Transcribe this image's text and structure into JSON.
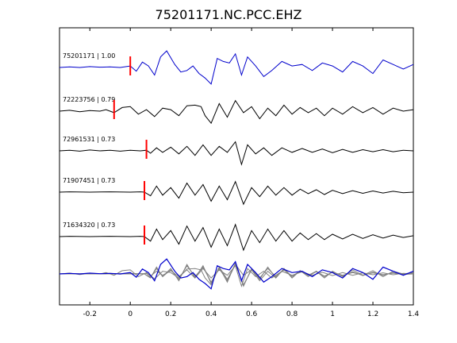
{
  "chart_data": {
    "type": "line",
    "title": "75201171.NC.PCC.EHZ",
    "xlabel": "",
    "ylabel": "",
    "xlim": [
      -0.35,
      1.4
    ],
    "xticks": [
      -0.2,
      0,
      0.2,
      0.4,
      0.6,
      0.8,
      1,
      1.2,
      1.4
    ],
    "xtick_labels": [
      "-0.2",
      "0",
      "0.2",
      "0.4",
      "0.6",
      "0.8",
      "1",
      "1.2",
      "1.4"
    ],
    "grid": false,
    "legend": "none",
    "colors": {
      "reference": "#0000cc",
      "trace": "#000000",
      "pick": "#ff0000",
      "stack_gray": "#808080"
    },
    "series": [
      {
        "label": "75201171 | 1.00",
        "pick_time": 0.0,
        "color": "#0000cc",
        "waveform": [
          [
            -0.35,
            0
          ],
          [
            -0.3,
            0.02
          ],
          [
            -0.25,
            0
          ],
          [
            -0.2,
            0.03
          ],
          [
            -0.15,
            0.01
          ],
          [
            -0.1,
            0.02
          ],
          [
            -0.05,
            0
          ],
          [
            0,
            0.05
          ],
          [
            0.03,
            -0.12
          ],
          [
            0.06,
            0.18
          ],
          [
            0.09,
            0.05
          ],
          [
            0.12,
            -0.25
          ],
          [
            0.15,
            0.35
          ],
          [
            0.18,
            0.55
          ],
          [
            0.22,
            0.1
          ],
          [
            0.25,
            -0.15
          ],
          [
            0.28,
            -0.1
          ],
          [
            0.31,
            0.05
          ],
          [
            0.34,
            -0.2
          ],
          [
            0.37,
            -0.35
          ],
          [
            0.4,
            -0.55
          ],
          [
            0.43,
            0.3
          ],
          [
            0.46,
            0.2
          ],
          [
            0.49,
            0.15
          ],
          [
            0.52,
            0.45
          ],
          [
            0.55,
            -0.25
          ],
          [
            0.58,
            0.35
          ],
          [
            0.62,
            0.05
          ],
          [
            0.66,
            -0.3
          ],
          [
            0.7,
            -0.1
          ],
          [
            0.75,
            0.2
          ],
          [
            0.8,
            0.05
          ],
          [
            0.85,
            0.1
          ],
          [
            0.9,
            -0.1
          ],
          [
            0.95,
            0.15
          ],
          [
            1.0,
            0.05
          ],
          [
            1.05,
            -0.15
          ],
          [
            1.1,
            0.2
          ],
          [
            1.15,
            0.05
          ],
          [
            1.2,
            -0.2
          ],
          [
            1.25,
            0.25
          ],
          [
            1.3,
            0.1
          ],
          [
            1.35,
            -0.05
          ],
          [
            1.4,
            0.1
          ]
        ]
      },
      {
        "label": "72223756 | 0.79",
        "pick_time": -0.08,
        "color": "#000000",
        "waveform": [
          [
            -0.35,
            0
          ],
          [
            -0.3,
            0.03
          ],
          [
            -0.25,
            -0.02
          ],
          [
            -0.2,
            0.02
          ],
          [
            -0.15,
            0
          ],
          [
            -0.12,
            0.05
          ],
          [
            -0.08,
            -0.05
          ],
          [
            -0.04,
            0.12
          ],
          [
            0,
            0.15
          ],
          [
            0.04,
            -0.1
          ],
          [
            0.08,
            0.05
          ],
          [
            0.12,
            -0.18
          ],
          [
            0.16,
            0.1
          ],
          [
            0.2,
            0.05
          ],
          [
            0.24,
            -0.15
          ],
          [
            0.28,
            0.18
          ],
          [
            0.32,
            0.2
          ],
          [
            0.35,
            0.15
          ],
          [
            0.37,
            -0.15
          ],
          [
            0.4,
            -0.4
          ],
          [
            0.44,
            0.25
          ],
          [
            0.48,
            -0.2
          ],
          [
            0.52,
            0.35
          ],
          [
            0.56,
            -0.05
          ],
          [
            0.6,
            0.15
          ],
          [
            0.64,
            -0.25
          ],
          [
            0.68,
            0.1
          ],
          [
            0.72,
            -0.15
          ],
          [
            0.76,
            0.2
          ],
          [
            0.8,
            -0.1
          ],
          [
            0.84,
            0.12
          ],
          [
            0.88,
            -0.05
          ],
          [
            0.92,
            0.1
          ],
          [
            0.96,
            -0.15
          ],
          [
            1.0,
            0.1
          ],
          [
            1.05,
            -0.1
          ],
          [
            1.1,
            0.15
          ],
          [
            1.15,
            -0.05
          ],
          [
            1.2,
            0.12
          ],
          [
            1.25,
            -0.1
          ],
          [
            1.3,
            0.1
          ],
          [
            1.35,
            0
          ],
          [
            1.4,
            0.05
          ]
        ]
      },
      {
        "label": "72961531 | 0.73",
        "pick_time": 0.08,
        "color": "#000000",
        "waveform": [
          [
            -0.35,
            0
          ],
          [
            -0.3,
            0.02
          ],
          [
            -0.25,
            -0.01
          ],
          [
            -0.2,
            0.03
          ],
          [
            -0.15,
            0
          ],
          [
            -0.1,
            0.02
          ],
          [
            -0.05,
            -0.01
          ],
          [
            0,
            0.02
          ],
          [
            0.05,
            0
          ],
          [
            0.08,
            0.02
          ],
          [
            0.1,
            -0.08
          ],
          [
            0.13,
            0.1
          ],
          [
            0.16,
            -0.05
          ],
          [
            0.2,
            0.12
          ],
          [
            0.24,
            -0.1
          ],
          [
            0.28,
            0.15
          ],
          [
            0.32,
            -0.15
          ],
          [
            0.36,
            0.2
          ],
          [
            0.4,
            -0.15
          ],
          [
            0.44,
            0.15
          ],
          [
            0.48,
            -0.05
          ],
          [
            0.52,
            0.3
          ],
          [
            0.55,
            -0.45
          ],
          [
            0.58,
            0.2
          ],
          [
            0.62,
            -0.1
          ],
          [
            0.66,
            0.1
          ],
          [
            0.7,
            -0.15
          ],
          [
            0.75,
            0.1
          ],
          [
            0.8,
            -0.05
          ],
          [
            0.85,
            0.08
          ],
          [
            0.9,
            -0.05
          ],
          [
            0.95,
            0.06
          ],
          [
            1.0,
            -0.06
          ],
          [
            1.05,
            0.05
          ],
          [
            1.1,
            -0.05
          ],
          [
            1.15,
            0.04
          ],
          [
            1.2,
            -0.03
          ],
          [
            1.25,
            0.04
          ],
          [
            1.3,
            -0.03
          ],
          [
            1.35,
            0.02
          ],
          [
            1.4,
            0
          ]
        ]
      },
      {
        "label": "71907451 | 0.73",
        "pick_time": 0.07,
        "color": "#000000",
        "waveform": [
          [
            -0.35,
            0
          ],
          [
            -0.3,
            0.01
          ],
          [
            -0.2,
            0
          ],
          [
            -0.1,
            0.01
          ],
          [
            0,
            0
          ],
          [
            0.05,
            0.01
          ],
          [
            0.07,
            0
          ],
          [
            0.1,
            -0.12
          ],
          [
            0.13,
            0.2
          ],
          [
            0.16,
            -0.1
          ],
          [
            0.2,
            0.15
          ],
          [
            0.24,
            -0.2
          ],
          [
            0.28,
            0.3
          ],
          [
            0.32,
            -0.1
          ],
          [
            0.36,
            0.25
          ],
          [
            0.4,
            -0.3
          ],
          [
            0.44,
            0.2
          ],
          [
            0.48,
            -0.25
          ],
          [
            0.52,
            0.35
          ],
          [
            0.56,
            -0.4
          ],
          [
            0.6,
            0.15
          ],
          [
            0.64,
            -0.15
          ],
          [
            0.68,
            0.2
          ],
          [
            0.72,
            -0.1
          ],
          [
            0.76,
            0.15
          ],
          [
            0.8,
            -0.1
          ],
          [
            0.84,
            0.1
          ],
          [
            0.88,
            -0.05
          ],
          [
            0.92,
            0.08
          ],
          [
            0.96,
            -0.08
          ],
          [
            1.0,
            0.06
          ],
          [
            1.05,
            -0.05
          ],
          [
            1.1,
            0.05
          ],
          [
            1.15,
            -0.04
          ],
          [
            1.2,
            0.04
          ],
          [
            1.25,
            -0.03
          ],
          [
            1.3,
            0.03
          ],
          [
            1.35,
            -0.02
          ],
          [
            1.4,
            0
          ]
        ]
      },
      {
        "label": "71634320 | 0.73",
        "pick_time": 0.07,
        "color": "#000000",
        "waveform": [
          [
            -0.35,
            0
          ],
          [
            -0.3,
            0.01
          ],
          [
            -0.2,
            0
          ],
          [
            -0.1,
            0.01
          ],
          [
            0,
            0
          ],
          [
            0.05,
            0.01
          ],
          [
            0.07,
            0
          ],
          [
            0.1,
            -0.15
          ],
          [
            0.13,
            0.25
          ],
          [
            0.16,
            -0.1
          ],
          [
            0.2,
            0.2
          ],
          [
            0.24,
            -0.25
          ],
          [
            0.28,
            0.35
          ],
          [
            0.32,
            -0.15
          ],
          [
            0.36,
            0.3
          ],
          [
            0.4,
            -0.35
          ],
          [
            0.44,
            0.25
          ],
          [
            0.48,
            -0.3
          ],
          [
            0.52,
            0.4
          ],
          [
            0.56,
            -0.45
          ],
          [
            0.6,
            0.2
          ],
          [
            0.64,
            -0.2
          ],
          [
            0.68,
            0.25
          ],
          [
            0.72,
            -0.15
          ],
          [
            0.76,
            0.2
          ],
          [
            0.8,
            -0.15
          ],
          [
            0.84,
            0.12
          ],
          [
            0.88,
            -0.1
          ],
          [
            0.92,
            0.1
          ],
          [
            0.96,
            -0.1
          ],
          [
            1.0,
            0.08
          ],
          [
            1.05,
            -0.08
          ],
          [
            1.1,
            0.08
          ],
          [
            1.15,
            -0.06
          ],
          [
            1.2,
            0.06
          ],
          [
            1.25,
            -0.05
          ],
          [
            1.3,
            0.05
          ],
          [
            1.35,
            -0.03
          ],
          [
            1.4,
            0.03
          ]
        ]
      }
    ],
    "stack": {
      "reference_color": "#0000cc",
      "others_color": "#808080"
    }
  }
}
